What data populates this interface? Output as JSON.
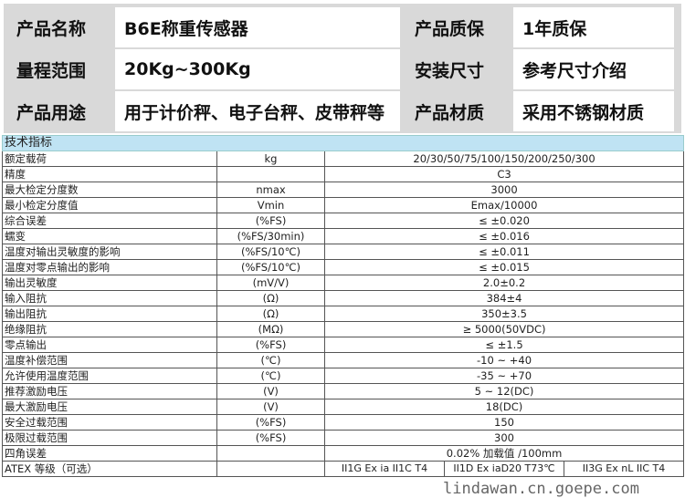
{
  "summary": [
    {
      "label1": "产品名称",
      "value1": "B6E称重传感器",
      "label2": "产品质保",
      "value2": "1年质保"
    },
    {
      "label1": "量程范围",
      "value1": "20Kg~300Kg",
      "label2": "安装尺寸",
      "value2": "参考尺寸介绍"
    },
    {
      "label1": "产品用途",
      "value1": "用于计价秤、电子台秤、皮带秤等",
      "label2": "产品材质",
      "value2": "采用不锈钢材质"
    }
  ],
  "spec": {
    "title": "技术指标",
    "rows": [
      [
        "额定载荷",
        "kg",
        "20/30/50/75/100/150/200/250/300"
      ],
      [
        "精度",
        "",
        "C3"
      ],
      [
        "最大检定分度数",
        "nmax",
        "3000"
      ],
      [
        "最小检定分度值",
        "Vmin",
        "Emax/10000"
      ],
      [
        "综合误差",
        "(%FS)",
        "≤ ±0.020"
      ],
      [
        "蠕变",
        "(%FS/30min)",
        "≤ ±0.016"
      ],
      [
        "温度对输出灵敏度的影响",
        "(%FS/10℃)",
        "≤ ±0.011"
      ],
      [
        "温度对零点输出的影响",
        "(%FS/10℃)",
        "≤ ±0.015"
      ],
      [
        "输出灵敏度",
        "(mV/V)",
        "2.0±0.2"
      ],
      [
        "输入阻抗",
        "(Ω)",
        "384±4"
      ],
      [
        "输出阻抗",
        "(Ω)",
        "350±3.5"
      ],
      [
        "绝缘阻抗",
        "(MΩ)",
        "≥ 5000(50VDC)"
      ],
      [
        "零点输出",
        "(%FS)",
        "≤ ±1.5"
      ],
      [
        "温度补偿范围",
        "(℃)",
        "-10 ~ +40"
      ],
      [
        "允许使用温度范围",
        "(℃)",
        "-35 ~ +70"
      ],
      [
        "推荐激励电压",
        "(V)",
        "5 ~ 12(DC)"
      ],
      [
        "最大激励电压",
        "(V)",
        "18(DC)"
      ],
      [
        "安全过载范围",
        "(%FS)",
        "150"
      ],
      [
        "极限过载范围",
        "(%FS)",
        "300"
      ],
      [
        "四角误差",
        "",
        "0.02% 加载值 /100mm"
      ]
    ],
    "atex": {
      "label": "ATEX 等级（可选）",
      "options": [
        "II1G Ex ia II1C T4",
        "II1D Ex iaD20 T73℃",
        "II3G Ex nL IIC T4"
      ]
    }
  },
  "watermark": "lindawan.cn.goepe.com"
}
